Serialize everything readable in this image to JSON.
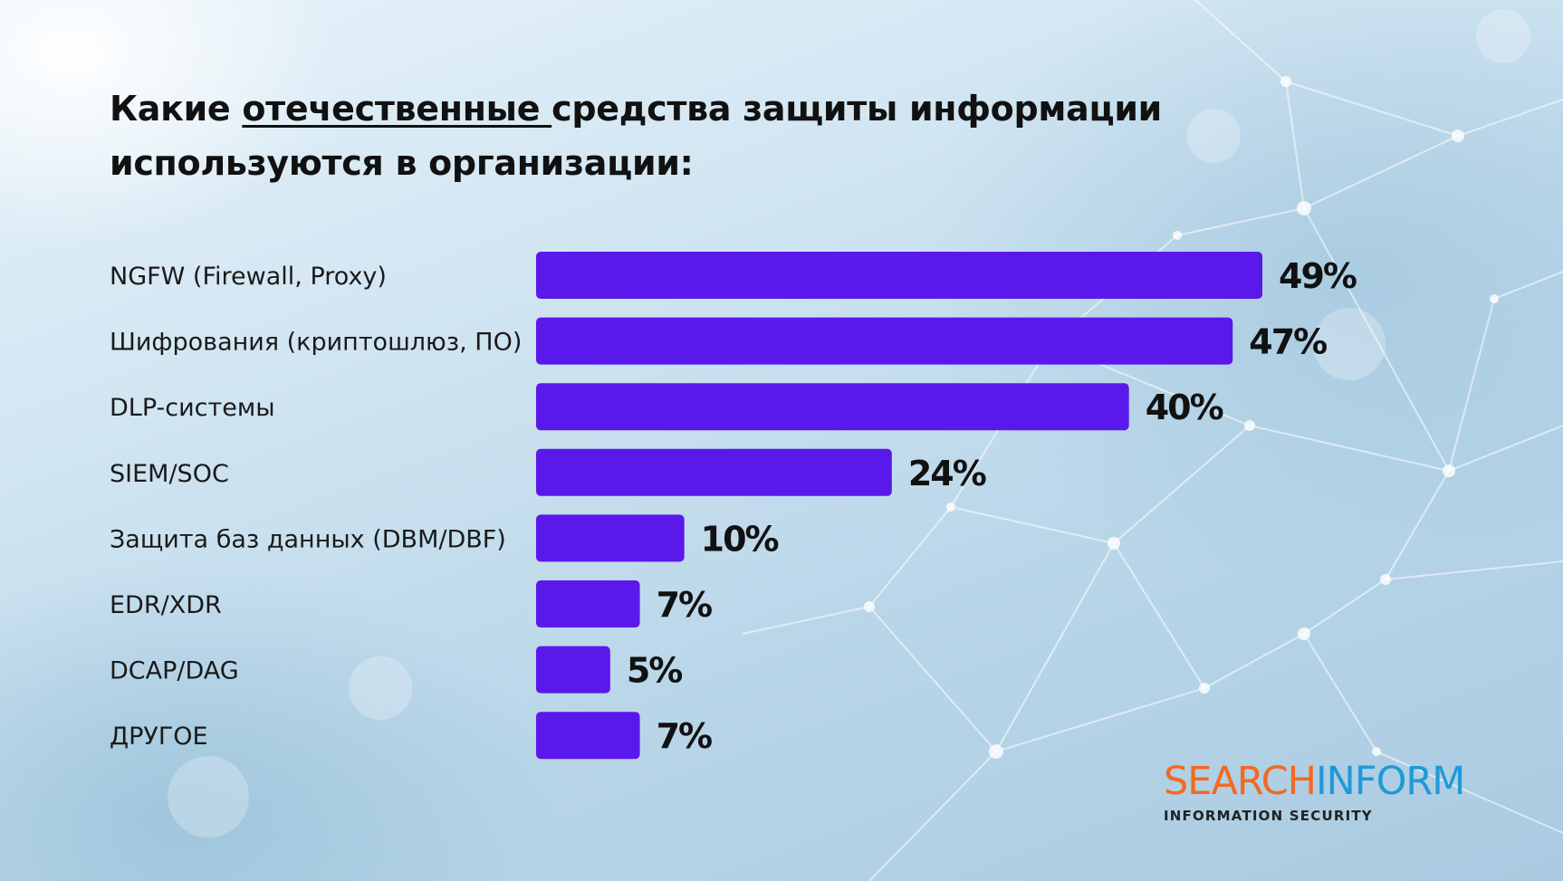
{
  "title": {
    "part1": "Какие ",
    "underlined": "отечественные ",
    "part2": "средства защиты информации",
    "line2": "используются в организации:"
  },
  "chart_data": {
    "type": "bar",
    "orientation": "horizontal",
    "categories": [
      "NGFW (Firewall, Proxy)",
      "Шифрования (криптошлюз, ПО)",
      "DLP-системы",
      "SIEM/SOC",
      "Защита баз данных (DBM/DBF)",
      "EDR/XDR",
      "DCAP/DAG",
      "ДРУГОЕ"
    ],
    "values": [
      49,
      47,
      40,
      24,
      10,
      7,
      5,
      7
    ],
    "value_labels": [
      "49%",
      "47%",
      "40%",
      "24%",
      "10%",
      "7%",
      "5%",
      "7%"
    ],
    "unit": "%",
    "bar_color": "#5b18ea",
    "xlim": [
      0,
      49
    ],
    "grid": false,
    "legend": "none"
  },
  "logo": {
    "word_part1": "SEARCH",
    "word_part2": "INFORM",
    "tagline": "INFORMATION SECURITY",
    "color1": "#f26a21",
    "color2": "#1f9ad6"
  }
}
